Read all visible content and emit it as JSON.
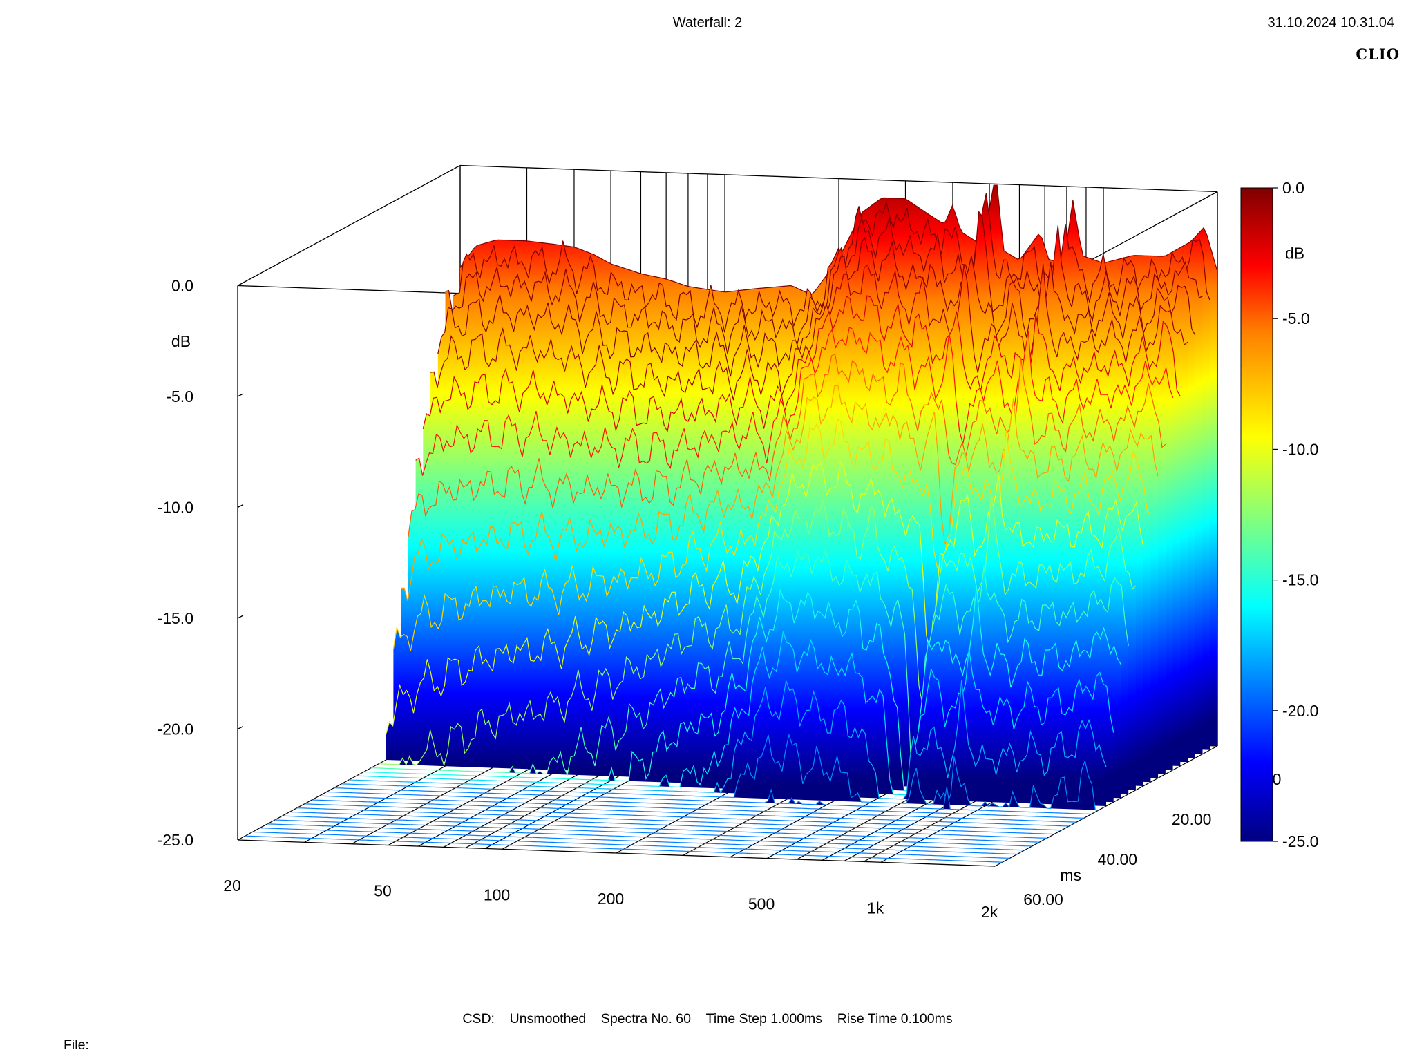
{
  "header": {
    "title": "Waterfall: 2",
    "timestamp": "31.10.2024 10.31.04",
    "brand": "CLIO"
  },
  "footer": {
    "csd": "CSD:",
    "smoothing": "Unsmoothed",
    "spectra": "Spectra No. 60",
    "time_step": "Time Step 1.000ms",
    "rise_time": "Rise Time 0.100ms",
    "file_label": "File:"
  },
  "chart_data": {
    "type": "waterfall",
    "title": "Waterfall: 2",
    "x_axis": {
      "label": "",
      "scale": "log",
      "range": [
        20,
        2000
      ],
      "ticks": [
        "20",
        "50",
        "100",
        "200",
        "500",
        "1k",
        "2k"
      ]
    },
    "y_axis": {
      "label": "ms",
      "range": [
        0,
        60
      ],
      "ticks": [
        "0.00",
        "20.00",
        "40.00",
        "60.00"
      ]
    },
    "z_axis": {
      "label": "dB",
      "range": [
        -25,
        0
      ],
      "ticks": [
        "0.0",
        "-5.0",
        "-10.0",
        "-15.0",
        "-20.0",
        "-25.0"
      ]
    },
    "colorbar": {
      "label": "dB",
      "range": [
        -25,
        0
      ],
      "ticks": [
        "0.0",
        "-5.0",
        "-10.0",
        "-15.0",
        "-20.0",
        "-25.0"
      ]
    },
    "spectra_count": 60,
    "time_step_ms": 1.0,
    "rise_time_ms": 0.1,
    "smoothing": "Unsmoothed",
    "colors": [
      "#00007f",
      "#0000ff",
      "#00ffff",
      "#ffff00",
      "#ff7f00",
      "#ff0000",
      "#7f0000"
    ],
    "first_spectrum": [
      [
        20,
        -4.6
      ],
      [
        22,
        -3.6
      ],
      [
        25,
        -3.3
      ],
      [
        30,
        -3.3
      ],
      [
        35,
        -3.4
      ],
      [
        40,
        -3.5
      ],
      [
        45,
        -3.8
      ],
      [
        50,
        -4.2
      ],
      [
        60,
        -4.6
      ],
      [
        70,
        -4.8
      ],
      [
        80,
        -5.1
      ],
      [
        100,
        -5.3
      ],
      [
        120,
        -5.1
      ],
      [
        150,
        -4.9
      ],
      [
        170,
        -5.3
      ],
      [
        200,
        -3.6
      ],
      [
        230,
        -1.5
      ],
      [
        260,
        -0.8
      ],
      [
        300,
        -0.8
      ],
      [
        340,
        -1.4
      ],
      [
        380,
        -1.9
      ],
      [
        400,
        -1.0
      ],
      [
        420,
        -2.2
      ],
      [
        480,
        -2.8
      ],
      [
        520,
        0.5
      ],
      [
        545,
        -3.0
      ],
      [
        600,
        -3.4
      ],
      [
        680,
        -2.1
      ],
      [
        720,
        -3.4
      ],
      [
        790,
        -3.2
      ],
      [
        830,
        -0.6
      ],
      [
        880,
        -3.1
      ],
      [
        1000,
        -3.4
      ],
      [
        1200,
        -3.0
      ],
      [
        1450,
        -3.0
      ],
      [
        1700,
        -2.3
      ],
      [
        1850,
        -1.6
      ],
      [
        2000,
        -3.6
      ]
    ]
  }
}
